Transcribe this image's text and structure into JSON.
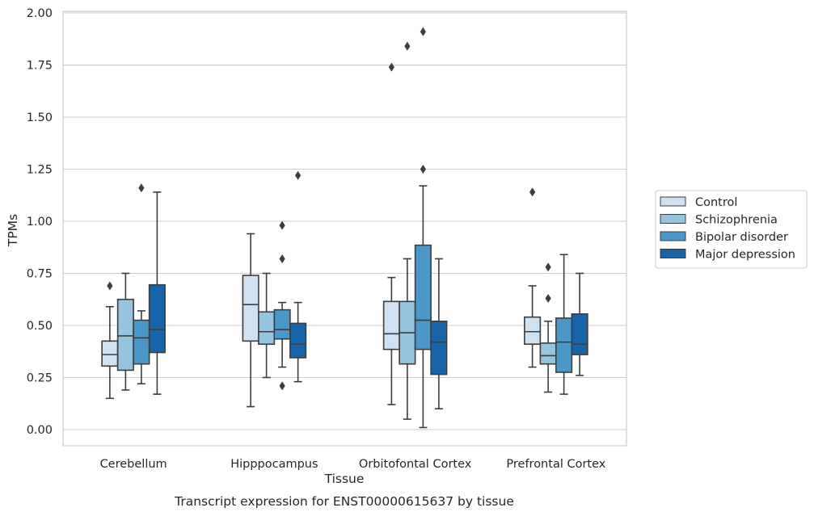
{
  "chart_data": {
    "type": "box",
    "title": "",
    "caption": "Transcript expression for ENST00000615637 by tissue",
    "xlabel": "Tissue",
    "ylabel": "TPMs",
    "categories": [
      "Cerebellum",
      "Hipppocampus",
      "Orbitofontal Cortex",
      "Prefrontal Cortex"
    ],
    "ylim": [
      -0.08,
      2.0
    ],
    "yticks": [
      0.0,
      0.25,
      0.5,
      0.75,
      1.0,
      1.25,
      1.5,
      1.75,
      2.0
    ],
    "ytick_labels": [
      "0.00",
      "0.25",
      "0.50",
      "0.75",
      "1.00",
      "1.25",
      "1.50",
      "1.75",
      "2.00"
    ],
    "grid": "horizontal",
    "legend_position": "right",
    "series": [
      {
        "name": "Control",
        "color": "#d0e1f2",
        "boxes": [
          {
            "whislo": 0.15,
            "q1": 0.305,
            "med": 0.36,
            "q3": 0.425,
            "whishi": 0.59,
            "fliers": [
              0.69
            ]
          },
          {
            "whislo": 0.11,
            "q1": 0.425,
            "med": 0.6,
            "q3": 0.74,
            "whishi": 0.94,
            "fliers": []
          },
          {
            "whislo": 0.12,
            "q1": 0.385,
            "med": 0.46,
            "q3": 0.615,
            "whishi": 0.73,
            "fliers": [
              1.74
            ]
          },
          {
            "whislo": 0.3,
            "q1": 0.41,
            "med": 0.47,
            "q3": 0.54,
            "whishi": 0.69,
            "fliers": [
              1.14
            ]
          }
        ]
      },
      {
        "name": "Schizophrenia",
        "color": "#94c4df",
        "boxes": [
          {
            "whislo": 0.19,
            "q1": 0.285,
            "med": 0.45,
            "q3": 0.625,
            "whishi": 0.75,
            "fliers": []
          },
          {
            "whislo": 0.25,
            "q1": 0.41,
            "med": 0.47,
            "q3": 0.565,
            "whishi": 0.75,
            "fliers": []
          },
          {
            "whislo": 0.05,
            "q1": 0.315,
            "med": 0.465,
            "q3": 0.615,
            "whishi": 0.82,
            "fliers": [
              1.84
            ]
          },
          {
            "whislo": 0.18,
            "q1": 0.315,
            "med": 0.355,
            "q3": 0.415,
            "whishi": 0.52,
            "fliers": [
              0.63,
              0.78
            ]
          }
        ]
      },
      {
        "name": "Bipolar disorder",
        "color": "#4a98c9",
        "boxes": [
          {
            "whislo": 0.22,
            "q1": 0.315,
            "med": 0.44,
            "q3": 0.525,
            "whishi": 0.57,
            "fliers": [
              1.16
            ]
          },
          {
            "whislo": 0.3,
            "q1": 0.435,
            "med": 0.48,
            "q3": 0.575,
            "whishi": 0.61,
            "fliers": [
              0.82,
              0.98,
              0.21
            ]
          },
          {
            "whislo": 0.01,
            "q1": 0.385,
            "med": 0.525,
            "q3": 0.885,
            "whishi": 1.17,
            "fliers": [
              1.25,
              1.91
            ]
          },
          {
            "whislo": 0.17,
            "q1": 0.275,
            "med": 0.42,
            "q3": 0.535,
            "whishi": 0.84,
            "fliers": []
          }
        ]
      },
      {
        "name": "Major depression",
        "color": "#1764ab",
        "boxes": [
          {
            "whislo": 0.17,
            "q1": 0.37,
            "med": 0.48,
            "q3": 0.695,
            "whishi": 1.14,
            "fliers": []
          },
          {
            "whislo": 0.23,
            "q1": 0.345,
            "med": 0.41,
            "q3": 0.51,
            "whishi": 0.61,
            "fliers": [
              1.22
            ]
          },
          {
            "whislo": 0.1,
            "q1": 0.265,
            "med": 0.42,
            "q3": 0.52,
            "whishi": 0.82,
            "fliers": []
          },
          {
            "whislo": 0.26,
            "q1": 0.36,
            "med": 0.41,
            "q3": 0.555,
            "whishi": 0.75,
            "fliers": []
          }
        ]
      }
    ]
  }
}
